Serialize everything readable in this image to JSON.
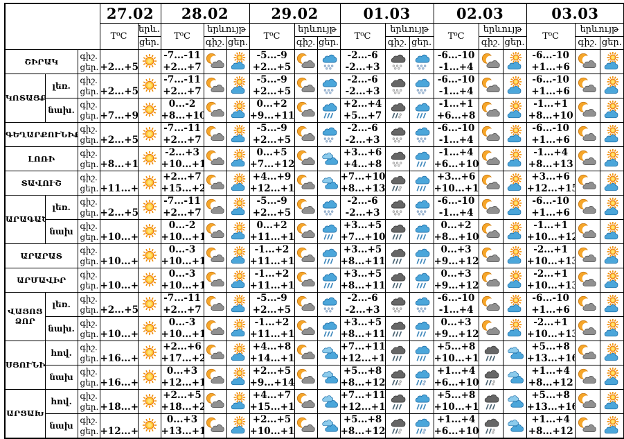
{
  "table": {
    "temp_header": "T⁰C",
    "phenom_header": "երևույթ",
    "phenom_abbr": "երև.",
    "night_label": "գիշ.",
    "day_label": "ցեր.",
    "dates": [
      "27.02",
      "28.02",
      "29.02",
      "01.03",
      "02.03",
      "03.03"
    ],
    "colors": {
      "sun": "#FFC430",
      "moon": "#F6A62A",
      "cloud_blue": "#4BA6DA",
      "cloud_gray": "#909090",
      "cloud_dark": "#666666",
      "border": "#000000"
    },
    "rows": [
      {
        "region": "ՇԻՐԱԿ",
        "region_rowspan": 1,
        "terrain": null,
        "cols": [
          {
            "t_day": "+2...+5",
            "icon_day": "sun"
          },
          {
            "t_night": "-7...-11",
            "t_day": "+2...+7",
            "icon_night": "moon-cloud",
            "icon_day": "sun-cloud"
          },
          {
            "t_night": "-5...-9",
            "t_day": "+2...+5",
            "icon_night": "moon-cloud",
            "icon_day": "cloud-snow"
          },
          {
            "t_night": "-2...-6",
            "t_day": "-2...+3",
            "icon_night": "dark-cloud-snow",
            "icon_day": "cloud-snow"
          },
          {
            "t_night": "-6...-10",
            "t_day": "-1...+4",
            "icon_night": "moon-cloud",
            "icon_day": "sun-cloud"
          },
          {
            "t_night": "-6...-10",
            "t_day": "+1...+6",
            "icon_night": "moon-cloud",
            "icon_day": "sun-cloud"
          }
        ]
      },
      {
        "region": "ԿՈՏԱՅՔ",
        "region_rowspan": 2,
        "terrain": "լեռ.",
        "cols": [
          {
            "t_day": "+2...+5",
            "icon_day": "sun"
          },
          {
            "t_night": "-7...-11",
            "t_day": "+2...+7",
            "icon_night": "moon-cloud",
            "icon_day": "sun-cloud"
          },
          {
            "t_night": "-5...-9",
            "t_day": "+2...+5",
            "icon_night": "moon-cloud",
            "icon_day": "cloud-snow"
          },
          {
            "t_night": "-2...-6",
            "t_day": "-2...+3",
            "icon_night": "dark-cloud-snow",
            "icon_day": "cloud-snow"
          },
          {
            "t_night": "-6...-10",
            "t_day": "-1...+4",
            "icon_night": "moon-cloud",
            "icon_day": "sun-cloud"
          },
          {
            "t_night": "-6...-10",
            "t_day": "+1...+6",
            "icon_night": "moon-cloud",
            "icon_day": "sun-cloud"
          }
        ]
      },
      {
        "region": null,
        "terrain": "նախ.",
        "cols": [
          {
            "t_day": "+7...+9",
            "icon_day": "sun"
          },
          {
            "t_night": "0...-2",
            "t_day": "+8...+10",
            "icon_night": "moon-cloud",
            "icon_day": "sun-cloud"
          },
          {
            "t_night": "0...+2",
            "t_day": "+9...+11",
            "icon_night": "moon-cloud",
            "icon_day": "cloud-rain"
          },
          {
            "t_night": "+2...+4",
            "t_day": "+5...+7",
            "icon_night": "dark-cloud-sleet",
            "icon_day": "cloud-rain"
          },
          {
            "t_night": "-1...+1",
            "t_day": "+6...+8",
            "icon_night": "moon-cloud",
            "icon_day": "sun-cloud"
          },
          {
            "t_night": "-1...+1",
            "t_day": "+8...+10",
            "icon_night": "moon-cloud",
            "icon_day": "sun-cloud"
          }
        ]
      },
      {
        "region": "ԳԵՂԱՐՔՈՒՆԻՔ",
        "region_rowspan": 1,
        "terrain": null,
        "cols": [
          {
            "t_day": "+2...+5",
            "icon_day": "sun"
          },
          {
            "t_night": "-7...-11",
            "t_day": "+2...+7",
            "icon_night": "moon-cloud",
            "icon_day": "sun-cloud"
          },
          {
            "t_night": "-5...-9",
            "t_day": "+2...+5",
            "icon_night": "moon-cloud",
            "icon_day": "cloud-snow"
          },
          {
            "t_night": "-2...-6",
            "t_day": "-2...+3",
            "icon_night": "dark-cloud-snow",
            "icon_day": "cloud-snow"
          },
          {
            "t_night": "-6...-10",
            "t_day": "-1...+4",
            "icon_night": "moon-cloud",
            "icon_day": "sun-cloud"
          },
          {
            "t_night": "-6...-10",
            "t_day": "+1...+6",
            "icon_night": "moon-cloud",
            "icon_day": "sun-cloud"
          }
        ]
      },
      {
        "region": "ԼՈՌԻ",
        "region_rowspan": 1,
        "terrain": null,
        "cols": [
          {
            "t_day": "+8...+11",
            "icon_day": "sun"
          },
          {
            "t_night": "-2...+3",
            "t_day": "+10...+15",
            "icon_night": "moon-cloud",
            "icon_day": "sun-cloud"
          },
          {
            "t_night": "0...+5",
            "t_day": "+7...+12",
            "icon_night": "moon-cloud",
            "icon_day": "clouds"
          },
          {
            "t_night": "+3...+6",
            "t_day": "+4...+8",
            "icon_night": "dark-cloud-snow",
            "icon_day": "cloud-rain"
          },
          {
            "t_night": "-1...+4",
            "t_day": "+6...+10",
            "icon_night": "moon-cloud",
            "icon_day": "sun-cloud"
          },
          {
            "t_night": "-1...+4",
            "t_day": "+8...+13",
            "icon_night": "moon-cloud",
            "icon_day": "sun-cloud"
          }
        ]
      },
      {
        "region": "ՏԱՎՈՒՇ",
        "region_rowspan": 1,
        "terrain": null,
        "cols": [
          {
            "t_day": "+11...+15",
            "icon_day": "sun"
          },
          {
            "t_night": "+2...+7",
            "t_day": "+15...+20",
            "icon_night": "moon-cloud",
            "icon_day": "sun-cloud"
          },
          {
            "t_night": "+4...+9",
            "t_day": "+12...+17",
            "icon_night": "moon-cloud",
            "icon_day": "clouds"
          },
          {
            "t_night": "+7...+10",
            "t_day": "+8...+13",
            "icon_night": "dark-cloud-sleet",
            "icon_day": "cloud-rain"
          },
          {
            "t_night": "+3...+6",
            "t_day": "+10...+13",
            "icon_night": "moon-cloud",
            "icon_day": "sun-cloud"
          },
          {
            "t_night": "+3...+6",
            "t_day": "+12...+15",
            "icon_night": "moon-cloud",
            "icon_day": "sun-cloud"
          }
        ]
      },
      {
        "region": "ԱՐԱԳԱԾՈՏՆ",
        "region_rowspan": 2,
        "terrain": "լեռ.",
        "cols": [
          {
            "t_day": "+2...+5",
            "icon_day": "sun"
          },
          {
            "t_night": "-7...-11",
            "t_day": "+2...+7",
            "icon_night": "moon-cloud",
            "icon_day": "sun-cloud"
          },
          {
            "t_night": "-5...-9",
            "t_day": "+2...+5",
            "icon_night": "moon-cloud",
            "icon_day": "cloud-snow"
          },
          {
            "t_night": "-2...-6",
            "t_day": "-2...+3",
            "icon_night": "dark-cloud-snow",
            "icon_day": "cloud-snow"
          },
          {
            "t_night": "-6...-10",
            "t_day": "-1...+4",
            "icon_night": "moon-cloud",
            "icon_day": "sun-cloud"
          },
          {
            "t_night": "-6...-10",
            "t_day": "+1...+6",
            "icon_night": "moon-cloud",
            "icon_day": "sun-cloud"
          }
        ]
      },
      {
        "region": null,
        "terrain": "նախ",
        "cols": [
          {
            "t_day": "+10...+12",
            "icon_day": "sun"
          },
          {
            "t_night": "0...-2",
            "t_day": "+10...+12",
            "icon_night": "moon-cloud",
            "icon_day": "sun-cloud"
          },
          {
            "t_night": "0...+2",
            "t_day": "+11...+13",
            "icon_night": "moon-cloud",
            "icon_day": "cloud-rain"
          },
          {
            "t_night": "+3...+5",
            "t_day": "+7...+10",
            "icon_night": "dark-cloud-rain",
            "icon_day": "cloud-rain"
          },
          {
            "t_night": "0...+2",
            "t_day": "+8...+10",
            "icon_night": "moon-cloud",
            "icon_day": "sun-cloud"
          },
          {
            "t_night": "-1...+1",
            "t_day": "+10...+12",
            "icon_night": "moon-cloud",
            "icon_day": "sun-cloud"
          }
        ]
      },
      {
        "region": "ԱՐԱՐԱՏ",
        "region_rowspan": 1,
        "terrain": null,
        "cols": [
          {
            "t_day": "+10...+12",
            "icon_day": "sun"
          },
          {
            "t_night": "0...-3",
            "t_day": "+10...+13",
            "icon_night": "moon-cloud",
            "icon_day": "sun-cloud"
          },
          {
            "t_night": "-1...+2",
            "t_day": "+11...+14",
            "icon_night": "moon-cloud",
            "icon_day": "cloud-rain"
          },
          {
            "t_night": "+3...+5",
            "t_day": "+8...+11",
            "icon_night": "dark-cloud-rain",
            "icon_day": "cloud-rain"
          },
          {
            "t_night": "0...+3",
            "t_day": "+9...+12",
            "icon_night": "moon-cloud",
            "icon_day": "sun-cloud"
          },
          {
            "t_night": "-2...+1",
            "t_day": "+10...+13",
            "icon_night": "moon-cloud",
            "icon_day": "sun-cloud"
          }
        ]
      },
      {
        "region": "ԱՐՄԱՎԻՐ",
        "region_rowspan": 1,
        "terrain": null,
        "cols": [
          {
            "t_day": "+10...+12",
            "icon_day": "sun"
          },
          {
            "t_night": "0...-3",
            "t_day": "+10...+13",
            "icon_night": "moon-cloud",
            "icon_day": "sun-cloud"
          },
          {
            "t_night": "-1...+2",
            "t_day": "+11...+14",
            "icon_night": "moon-cloud",
            "icon_day": "cloud-rain"
          },
          {
            "t_night": "+3...+5",
            "t_day": "+8...+11",
            "icon_night": "dark-cloud-rain",
            "icon_day": "cloud-rain"
          },
          {
            "t_night": "0...+3",
            "t_day": "+9...+12",
            "icon_night": "moon-cloud",
            "icon_day": "sun-cloud"
          },
          {
            "t_night": "-2...+1",
            "t_day": "+10...+13",
            "icon_night": "moon-cloud",
            "icon_day": "sun-cloud"
          }
        ]
      },
      {
        "region": "ՎԱՅՈՑ ՁՈՐ",
        "region_rowspan": 2,
        "terrain": "լեռ.",
        "cols": [
          {
            "t_day": "+2...+5",
            "icon_day": "sun"
          },
          {
            "t_night": "-7...-11",
            "t_day": "+2...+7",
            "icon_night": "moon-cloud",
            "icon_day": "sun-cloud"
          },
          {
            "t_night": "-5...-9",
            "t_day": "+2...+5",
            "icon_night": "moon-cloud",
            "icon_day": "cloud-snow"
          },
          {
            "t_night": "-2...-6",
            "t_day": "-2...+3",
            "icon_night": "dark-cloud-snow",
            "icon_day": "cloud-snow"
          },
          {
            "t_night": "-6...-10",
            "t_day": "-1...+4",
            "icon_night": "moon-cloud",
            "icon_day": "sun-cloud"
          },
          {
            "t_night": "-6...-10",
            "t_day": "+1...+6",
            "icon_night": "moon-cloud",
            "icon_day": "sun-cloud"
          }
        ]
      },
      {
        "region": null,
        "terrain": "նախ.",
        "cols": [
          {
            "t_day": "+10...+12",
            "icon_day": "sun"
          },
          {
            "t_night": "0...-3",
            "t_day": "+10...+13",
            "icon_night": "moon-cloud",
            "icon_day": "sun-cloud"
          },
          {
            "t_night": "-1...+2",
            "t_day": "+11...+14",
            "icon_night": "moon-cloud",
            "icon_day": "cloud-rain"
          },
          {
            "t_night": "+3...+5",
            "t_day": "+8...+11",
            "icon_night": "dark-cloud-rain",
            "icon_day": "cloud-rain"
          },
          {
            "t_night": "0...+3",
            "t_day": "+9...+12",
            "icon_night": "moon-cloud",
            "icon_day": "sun-cloud"
          },
          {
            "t_night": "-2...+1",
            "t_day": "+10...+13",
            "icon_night": "moon-cloud",
            "icon_day": "sun-cloud"
          }
        ]
      },
      {
        "region": "ՍՅՈՒՆԻՔ",
        "region_rowspan": 2,
        "terrain": "հով.",
        "cols": [
          {
            "t_day": "+16...+20",
            "icon_day": "sun"
          },
          {
            "t_night": "+2...+6",
            "t_day": "+17...+22",
            "icon_night": "moon-cloud",
            "icon_day": "sun-cloud"
          },
          {
            "t_night": "+4...+8",
            "t_day": "+14...+19",
            "icon_night": "moon-cloud",
            "icon_day": "clouds"
          },
          {
            "t_night": "+7...+11",
            "t_day": "+12...+16",
            "icon_night": "dark-cloud-rain",
            "icon_day": "cloud-rain"
          },
          {
            "t_night": "+5...+8",
            "t_day": "+10...+13",
            "icon_night": "dark-cloud-rain",
            "icon_day": "clouds"
          },
          {
            "t_night": "+5...+8",
            "t_day": "+13...+16",
            "icon_night": "moon-cloud",
            "icon_day": "sun-cloud"
          }
        ]
      },
      {
        "region": null,
        "terrain": "նախ",
        "cols": [
          {
            "t_day": "+16...+20",
            "icon_day": "sun"
          },
          {
            "t_night": "0...+3",
            "t_day": "+12...+17",
            "icon_night": "moon-cloud",
            "icon_day": "sun-cloud"
          },
          {
            "t_night": "+2...+5",
            "t_day": "+9...+14",
            "icon_night": "moon-cloud",
            "icon_day": "clouds"
          },
          {
            "t_night": "+5...+8",
            "t_day": "+8...+12",
            "icon_night": "dark-cloud-sleet",
            "icon_day": "cloud-sleet"
          },
          {
            "t_night": "+1...+4",
            "t_day": "+6...+10",
            "icon_night": "dark-cloud-sleet",
            "icon_day": "clouds"
          },
          {
            "t_night": "+1...+4",
            "t_day": "+8...+12",
            "icon_night": "moon-cloud",
            "icon_day": "sun-cloud"
          }
        ]
      },
      {
        "region": "ԱՐՑԱԽ",
        "region_rowspan": 2,
        "terrain": "հով.",
        "cols": [
          {
            "t_day": "+18...+21",
            "icon_day": "sun"
          },
          {
            "t_night": "+2...+5",
            "t_day": "+18...+22",
            "icon_night": "moon-cloud",
            "icon_day": "sun-cloud"
          },
          {
            "t_night": "+4...+7",
            "t_day": "+15...+19",
            "icon_night": "moon-cloud",
            "icon_day": "clouds"
          },
          {
            "t_night": "+7...+11",
            "t_day": "+12...+16",
            "icon_night": "dark-cloud-rain",
            "icon_day": "cloud-rain"
          },
          {
            "t_night": "+5...+8",
            "t_day": "+10...+13",
            "icon_night": "dark-cloud-rain",
            "icon_day": "clouds"
          },
          {
            "t_night": "+5...+8",
            "t_day": "+13...+16",
            "icon_night": "moon-cloud",
            "icon_day": "sun-cloud"
          }
        ]
      },
      {
        "region": null,
        "terrain": "նախ",
        "cols": [
          {
            "t_day": "+12...+17",
            "icon_day": "sun"
          },
          {
            "t_night": "0...+3",
            "t_day": "+13...+18",
            "icon_night": "moon-cloud",
            "icon_day": "sun-cloud"
          },
          {
            "t_night": "+2...+5",
            "t_day": "+10...+15",
            "icon_night": "moon-cloud",
            "icon_day": "clouds"
          },
          {
            "t_night": "+5...+8",
            "t_day": "+8...+12",
            "icon_night": "dark-cloud-sleet",
            "icon_day": "cloud-sleet"
          },
          {
            "t_night": "+1...+4",
            "t_day": "+6...+10",
            "icon_night": "dark-cloud-sleet",
            "icon_day": "clouds"
          },
          {
            "t_night": "+1...+4",
            "t_day": "+8...+12",
            "icon_night": "moon-cloud",
            "icon_day": "sun-cloud"
          }
        ]
      }
    ]
  }
}
